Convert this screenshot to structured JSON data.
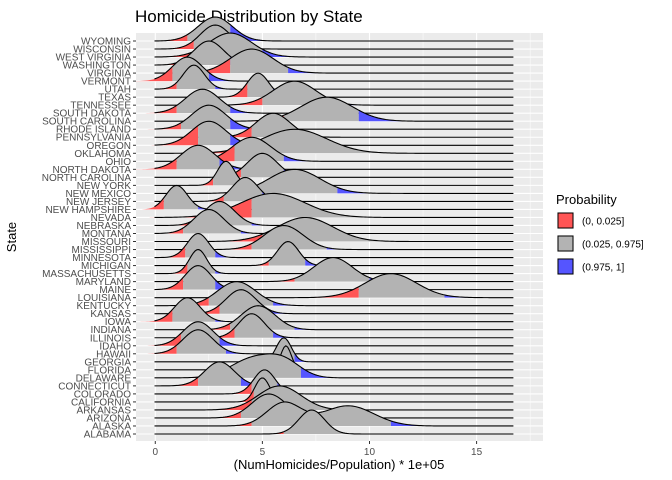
{
  "chart_data": {
    "type": "ridgeline",
    "title": "Homicide Distribution by State",
    "xlabel": "(NumHomicides/Population) * 1e+05",
    "ylabel": "State",
    "xlim": [
      -0.9,
      18.1
    ],
    "x_ticks": [
      0,
      5,
      10,
      15
    ],
    "grid": true,
    "legend_position": "right",
    "legend": {
      "title": "Probability",
      "entries": [
        {
          "label": "(0, 0.025]",
          "color": "#FF5555"
        },
        {
          "label": "(0.025, 0.975]",
          "color": "#B3B3B3"
        },
        {
          "label": "(0.975, 1]",
          "color": "#5555FF"
        }
      ]
    },
    "series": [
      {
        "name": "ALABAMA",
        "modes": [
          [
            7.3,
            0.6,
            1.0
          ]
        ],
        "q": [
          6.0,
          9.5
        ]
      },
      {
        "name": "ALASKA",
        "modes": [
          [
            6.0,
            0.8,
            0.8
          ],
          [
            9.0,
            1.2,
            0.7
          ]
        ],
        "q": [
          4.5,
          11.0
        ]
      },
      {
        "name": "ARIZONA",
        "modes": [
          [
            5.3,
            0.8,
            1.0
          ]
        ],
        "q": [
          4.0,
          7.0
        ]
      },
      {
        "name": "ARKANSAS",
        "modes": [
          [
            5.8,
            1.0,
            1.0
          ]
        ],
        "q": [
          4.5,
          9.0
        ]
      },
      {
        "name": "CALIFORNIA",
        "modes": [
          [
            5.0,
            0.35,
            1.0
          ]
        ],
        "q": [
          4.6,
          5.8
        ]
      },
      {
        "name": "COLORADO",
        "modes": [
          [
            5.1,
            0.5,
            1.0
          ]
        ],
        "q": [
          4.5,
          5.7
        ]
      },
      {
        "name": "CONNECTICUT",
        "modes": [
          [
            3.0,
            0.7,
            1.0
          ]
        ],
        "q": [
          2.0,
          4.0
        ]
      },
      {
        "name": "DELAWARE",
        "modes": [
          [
            4.5,
            1.0,
            0.6
          ],
          [
            6.0,
            0.8,
            0.5
          ]
        ],
        "q": [
          3.0,
          6.8
        ]
      },
      {
        "name": "FLORIDA",
        "modes": [
          [
            6.1,
            0.25,
            1.0
          ]
        ],
        "q": [
          5.5,
          6.7
        ]
      },
      {
        "name": "GEORGIA",
        "modes": [
          [
            6.0,
            0.35,
            1.0
          ]
        ],
        "q": [
          5.4,
          6.5
        ]
      },
      {
        "name": "HAWAII",
        "modes": [
          [
            2.0,
            0.7,
            1.0
          ]
        ],
        "q": [
          1.0,
          3.3
        ]
      },
      {
        "name": "IDAHO",
        "modes": [
          [
            2.0,
            0.7,
            1.0
          ]
        ],
        "q": [
          1.2,
          3.0
        ]
      },
      {
        "name": "ILLINOIS",
        "modes": [
          [
            4.5,
            0.6,
            1.0
          ]
        ],
        "q": [
          3.7,
          5.5
        ]
      },
      {
        "name": "INDIANA",
        "modes": [
          [
            4.8,
            0.8,
            1.0
          ]
        ],
        "q": [
          3.5,
          6.5
        ]
      },
      {
        "name": "IOWA",
        "modes": [
          [
            1.5,
            0.6,
            1.0
          ]
        ],
        "q": [
          0.8,
          2.8
        ]
      },
      {
        "name": "KANSAS",
        "modes": [
          [
            4.0,
            0.7,
            1.0
          ]
        ],
        "q": [
          3.0,
          5.0
        ]
      },
      {
        "name": "KENTUCKY",
        "modes": [
          [
            3.8,
            0.9,
            1.0
          ]
        ],
        "q": [
          2.5,
          5.5
        ]
      },
      {
        "name": "LOUISIANA",
        "modes": [
          [
            11.0,
            1.2,
            1.0
          ]
        ],
        "q": [
          9.5,
          13.5
        ]
      },
      {
        "name": "MAINE",
        "modes": [
          [
            2.0,
            0.6,
            1.0
          ]
        ],
        "q": [
          1.3,
          2.8
        ]
      },
      {
        "name": "MARYLAND",
        "modes": [
          [
            8.3,
            0.9,
            1.0
          ]
        ],
        "q": [
          6.5,
          10.0
        ]
      },
      {
        "name": "MASSACHUSETTS",
        "modes": [
          [
            2.0,
            0.4,
            1.0
          ]
        ],
        "q": [
          1.5,
          2.8
        ]
      },
      {
        "name": "MICHIGAN",
        "modes": [
          [
            6.2,
            0.5,
            1.0
          ]
        ],
        "q": [
          5.3,
          7.0
        ]
      },
      {
        "name": "MINNESOTA",
        "modes": [
          [
            2.0,
            0.5,
            1.0
          ]
        ],
        "q": [
          1.4,
          2.8
        ]
      },
      {
        "name": "MISSISSIPPI",
        "modes": [
          [
            6.0,
            0.9,
            1.0
          ]
        ],
        "q": [
          4.5,
          8.0
        ]
      },
      {
        "name": "MISSOURI",
        "modes": [
          [
            7.0,
            1.3,
            1.0
          ]
        ],
        "q": [
          5.0,
          11.0
        ]
      },
      {
        "name": "MONTANA",
        "modes": [
          [
            2.5,
            0.7,
            1.0
          ]
        ],
        "q": [
          1.3,
          4.0
        ]
      },
      {
        "name": "NEBRASKA",
        "modes": [
          [
            3.0,
            0.7,
            1.0
          ]
        ],
        "q": [
          2.0,
          4.5
        ]
      },
      {
        "name": "NEVADA",
        "modes": [
          [
            5.5,
            1.5,
            1.0
          ]
        ],
        "q": [
          4.5,
          10.0
        ]
      },
      {
        "name": "NEW HAMPSHIRE",
        "modes": [
          [
            1.0,
            0.5,
            1.0
          ]
        ],
        "q": [
          0.4,
          2.0
        ]
      },
      {
        "name": "NEW JERSEY",
        "modes": [
          [
            4.2,
            0.6,
            1.0
          ]
        ],
        "q": [
          3.2,
          5.0
        ]
      },
      {
        "name": "NEW MEXICO",
        "modes": [
          [
            6.5,
            1.2,
            1.0
          ]
        ],
        "q": [
          4.5,
          8.5
        ]
      },
      {
        "name": "NEW YORK",
        "modes": [
          [
            3.3,
            0.4,
            1.0
          ]
        ],
        "q": [
          2.7,
          4.0
        ]
      },
      {
        "name": "NORTH CAROLINA",
        "modes": [
          [
            5.0,
            0.7,
            1.0
          ]
        ],
        "q": [
          4.0,
          6.0
        ]
      },
      {
        "name": "NORTH DAKOTA",
        "modes": [
          [
            2.0,
            0.8,
            1.0
          ]
        ],
        "q": [
          1.0,
          3.0
        ]
      },
      {
        "name": "OHIO",
        "modes": [
          [
            4.5,
            0.9,
            1.0
          ]
        ],
        "q": [
          3.7,
          6.0
        ]
      },
      {
        "name": "OKLAHOMA",
        "modes": [
          [
            6.5,
            1.5,
            1.0
          ]
        ],
        "q": [
          3.8,
          15.5
        ]
      },
      {
        "name": "OREGON",
        "modes": [
          [
            2.5,
            0.8,
            1.0
          ]
        ],
        "q": [
          2.0,
          3.5
        ]
      },
      {
        "name": "PENNSYLVANIA",
        "modes": [
          [
            5.5,
            0.8,
            1.0
          ]
        ],
        "q": [
          4.5,
          6.8
        ]
      },
      {
        "name": "RHODE ISLAND",
        "modes": [
          [
            2.5,
            0.8,
            1.0
          ]
        ],
        "q": [
          1.2,
          3.5
        ]
      },
      {
        "name": "SOUTH CAROLINA",
        "modes": [
          [
            8.0,
            1.2,
            1.0
          ]
        ],
        "q": [
          6.0,
          9.5
        ]
      },
      {
        "name": "SOUTH DAKOTA",
        "modes": [
          [
            2.2,
            0.8,
            1.0
          ]
        ],
        "q": [
          1.0,
          3.5
        ]
      },
      {
        "name": "TENNESSEE",
        "modes": [
          [
            6.5,
            1.0,
            1.0
          ]
        ],
        "q": [
          5.0,
          9.0
        ]
      },
      {
        "name": "TEXAS",
        "modes": [
          [
            4.8,
            0.5,
            1.0
          ]
        ],
        "q": [
          4.3,
          5.5
        ]
      },
      {
        "name": "UTAH",
        "modes": [
          [
            1.8,
            0.5,
            1.0
          ]
        ],
        "q": [
          1.0,
          2.8
        ]
      },
      {
        "name": "VERMONT",
        "modes": [
          [
            1.5,
            0.7,
            1.0
          ]
        ],
        "q": [
          0.8,
          2.5
        ]
      },
      {
        "name": "VIRGINIA",
        "modes": [
          [
            4.5,
            1.0,
            1.0
          ]
        ],
        "q": [
          3.5,
          6.2
        ]
      },
      {
        "name": "WASHINGTON",
        "modes": [
          [
            2.5,
            0.7,
            1.0
          ]
        ],
        "q": [
          1.5,
          3.5
        ]
      },
      {
        "name": "WEST VIRGINIA",
        "modes": [
          [
            3.5,
            1.0,
            1.0
          ]
        ],
        "q": [
          2.5,
          5.0
        ]
      },
      {
        "name": "WISCONSIN",
        "modes": [
          [
            2.8,
            0.7,
            1.0
          ]
        ],
        "q": [
          1.8,
          4.5
        ]
      },
      {
        "name": "WYOMING",
        "modes": [
          [
            2.8,
            0.8,
            1.0
          ]
        ],
        "q": [
          1.5,
          3.5
        ]
      }
    ]
  }
}
